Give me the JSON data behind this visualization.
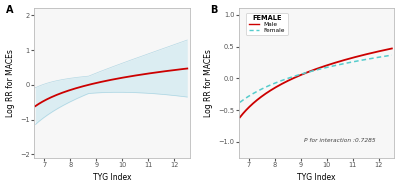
{
  "panel_A_label": "A",
  "panel_B_label": "B",
  "xlabel": "TYG Index",
  "ylabel_A": "Log RR for MACEs",
  "ylabel_B": "Log RR for MACEs",
  "xlim": [
    6.6,
    12.6
  ],
  "ylim_A": [
    -2.1,
    2.2
  ],
  "ylim_B": [
    -1.25,
    1.1
  ],
  "xticks": [
    7,
    8,
    9,
    10,
    11,
    12
  ],
  "yticks_A": [
    -2,
    -1,
    0,
    1,
    2
  ],
  "yticks_B": [
    -1.0,
    -0.5,
    0.0,
    0.5,
    1.0
  ],
  "interaction_text": "P for interaction :0.7285",
  "legend_title": "FEMALE",
  "legend_items": [
    "Male",
    "Female"
  ],
  "male_color": "#cc0000",
  "female_color": "#55cccc",
  "ci_color_A": "#c5e5ee",
  "bg_color": "#f7f7f7"
}
